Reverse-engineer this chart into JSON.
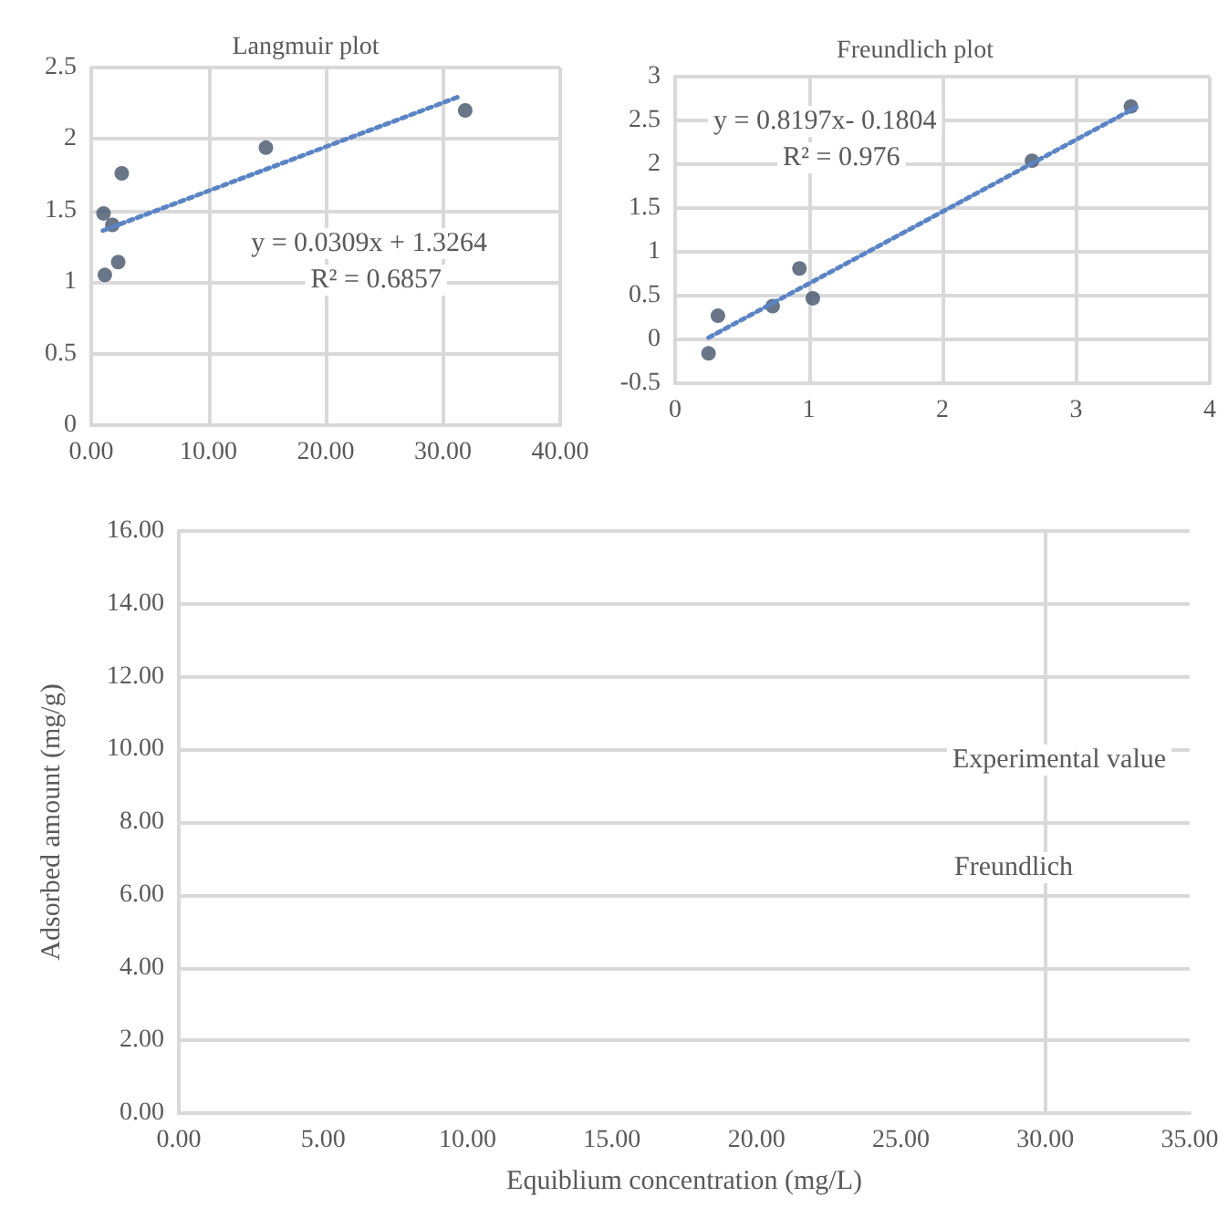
{
  "chart_data": [
    {
      "type": "scatter",
      "title": "Langmuir plot",
      "marker": "circle",
      "grid": true,
      "xlim": [
        0,
        40
      ],
      "xticks": [
        {
          "value": 0,
          "label": "0.00"
        },
        {
          "value": 10,
          "label": "10.00"
        },
        {
          "value": 20,
          "label": "20.00"
        },
        {
          "value": 30,
          "label": "30.00"
        },
        {
          "value": 40,
          "label": "40.00"
        }
      ],
      "ylim": [
        0,
        2.5
      ],
      "yticks": [
        0,
        0.5,
        1,
        1.5,
        2,
        2.5
      ],
      "series": [
        {
          "color": "#44546a",
          "x": [
            1.05,
            1.8,
            2.6,
            1.16,
            2.3,
            14.9,
            31.9
          ],
          "values": [
            1.48,
            1.4,
            1.76,
            1.05,
            1.14,
            1.94,
            2.2
          ]
        },
        {
          "type": "line",
          "marker": "none",
          "line_style": "dotted",
          "color": "#5b84c4",
          "x": [
            1,
            31.5
          ],
          "values": [
            1.36,
            2.3
          ]
        }
      ],
      "annotations": [
        "y = 0.0309x + 1.3264",
        "R² = 0.6857"
      ]
    },
    {
      "type": "scatter",
      "title": "Freundlich plot",
      "marker": "circle",
      "grid": true,
      "xlim": [
        0,
        4
      ],
      "xticks": [
        0,
        1,
        2,
        3,
        4
      ],
      "ylim": [
        -0.5,
        3
      ],
      "yticks": [
        -0.5,
        0,
        0.5,
        1,
        1.5,
        2,
        2.5,
        3
      ],
      "series": [
        {
          "color": "#44546a",
          "x": [
            0.25,
            0.32,
            0.73,
            0.93,
            1.03,
            2.67,
            3.41
          ],
          "values": [
            -0.16,
            0.27,
            0.38,
            0.81,
            0.47,
            2.04,
            2.66
          ]
        },
        {
          "type": "line",
          "marker": "none",
          "line_style": "dotted",
          "color": "#5b84c4",
          "x": [
            0.25,
            3.45
          ],
          "values": [
            0.02,
            2.65
          ]
        }
      ],
      "annotations": [
        "y = 0.8197x- 0.1804",
        "R² = 0.976"
      ]
    },
    {
      "type": "scatter",
      "grid": "y",
      "xlabel": "Equiblium concentration (mg/L)",
      "ylabel": "Adsorbed amount (mg/g)",
      "xlim": [
        0,
        35
      ],
      "xticks": [
        {
          "value": 0,
          "label": "0.00"
        },
        {
          "value": 5,
          "label": "5.00"
        },
        {
          "value": 10,
          "label": "10.00"
        },
        {
          "value": 15,
          "label": "15.00"
        },
        {
          "value": 20,
          "label": "20.00"
        },
        {
          "value": 25,
          "label": "25.00"
        },
        {
          "value": 30,
          "label": "30.00"
        },
        {
          "value": 35,
          "label": "35.00"
        }
      ],
      "ylim": [
        0,
        16
      ],
      "yticks": [
        {
          "value": 0,
          "label": "0.00"
        },
        {
          "value": 2,
          "label": "2.00"
        },
        {
          "value": 4,
          "label": "4.00"
        },
        {
          "value": 6,
          "label": "6.00"
        },
        {
          "value": 8,
          "label": "8.00"
        },
        {
          "value": 10,
          "label": "10.00"
        },
        {
          "value": 12,
          "label": "12.00"
        },
        {
          "value": 14,
          "label": "14.00"
        },
        {
          "value": 16,
          "label": "16.00"
        }
      ],
      "ref_lines": [
        {
          "axis": "x",
          "value": 30,
          "color": "#d9d9d9"
        }
      ],
      "annotations": [
        "Experimental value",
        "Freundlich"
      ]
    }
  ]
}
